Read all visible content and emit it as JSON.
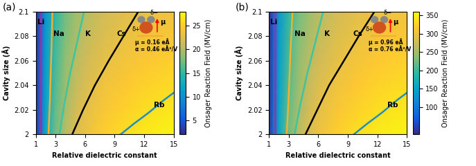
{
  "chart_data": [
    {
      "type": "heatmap",
      "panel_label": "(a)",
      "x_label": "Relative dielectric constant",
      "y_label": "Cavity size (Å)",
      "x": [
        1,
        1.5,
        2,
        3,
        4,
        5,
        6,
        8,
        10,
        12,
        15
      ],
      "y": [
        2.0,
        2.02,
        2.04,
        2.06,
        2.08,
        2.1
      ],
      "cells": [
        [
          2.5,
          7.6,
          12.2,
          17.4,
          20.3,
          22.1,
          23.4,
          25.1,
          26.1,
          26.8,
          27.5
        ],
        [
          2.4,
          7.4,
          11.8,
          16.9,
          19.7,
          21.5,
          22.7,
          24.4,
          25.3,
          26.0,
          26.7
        ],
        [
          2.4,
          7.2,
          11.5,
          16.4,
          19.1,
          20.8,
          22.0,
          23.7,
          24.6,
          25.3,
          25.9
        ],
        [
          2.3,
          7.0,
          11.2,
          15.9,
          18.6,
          20.2,
          21.4,
          23.0,
          23.9,
          24.5,
          25.2
        ],
        [
          2.2,
          6.8,
          10.8,
          15.5,
          18.0,
          19.6,
          20.8,
          22.3,
          23.2,
          23.8,
          24.4
        ],
        [
          2.2,
          6.6,
          10.5,
          15.0,
          17.5,
          19.1,
          20.2,
          21.7,
          22.5,
          23.1,
          23.8
        ]
      ],
      "xlim": [
        1,
        15
      ],
      "ylim": [
        2,
        2.1
      ],
      "xticks": [
        1,
        3,
        6,
        9,
        12,
        15
      ],
      "yticks": [
        2,
        2.02,
        2.04,
        2.06,
        2.08,
        2.1
      ],
      "colorbar_label": "Onsager Reaction Field (MV/cm)",
      "colorbar_range": [
        2,
        28
      ],
      "colorbar_ticks": [
        5,
        10,
        15,
        20,
        25
      ],
      "contours": [
        {
          "name": "Li",
          "color": "#b0279e",
          "x": [
            1.5,
            1.5
          ],
          "y": [
            2.0,
            2.1
          ],
          "label_at": [
            1.15,
            2.09
          ]
        },
        {
          "name": "Na",
          "color": "#f0b030",
          "x": [
            2.3,
            2.45,
            2.6,
            2.7
          ],
          "y": [
            2.0,
            2.03,
            2.07,
            2.1
          ],
          "label_at": [
            2.8,
            2.08
          ]
        },
        {
          "name": "K",
          "color": "#3fc4a0",
          "x": [
            3.4,
            3.9,
            4.5,
            5.2,
            5.9
          ],
          "y": [
            2.0,
            2.025,
            2.05,
            2.075,
            2.1
          ],
          "label_at": [
            6.0,
            2.08
          ]
        },
        {
          "name": "Cs",
          "color": "#000000",
          "x": [
            4.7,
            5.8,
            7.0,
            8.4,
            9.9,
            11.4
          ],
          "y": [
            2.0,
            2.02,
            2.04,
            2.06,
            2.08,
            2.1
          ],
          "label_at": [
            9.2,
            2.08
          ]
        },
        {
          "name": "Rb",
          "color": "#1f8fbf",
          "x": [
            9.6,
            11,
            12.5,
            14,
            15
          ],
          "y": [
            2.0,
            2.009,
            2.018,
            2.028,
            2.034
          ],
          "label_at": [
            13.0,
            2.022
          ]
        }
      ],
      "annotations": {
        "dipole_symbol": "μ",
        "charge_negative": "δ−",
        "charge_positive": "δ+",
        "dipole_moment": "μ = 0.16 eÅ",
        "polarizability": "α = 0.46 eÅ²/V"
      }
    },
    {
      "type": "heatmap",
      "panel_label": "(b)",
      "x_label": "Relative dielectric constant",
      "y_label": "Cavity size (Å)",
      "x": [
        1,
        1.5,
        2,
        3,
        4,
        5,
        6,
        8,
        10,
        12,
        15
      ],
      "y": [
        2.0,
        2.02,
        2.04,
        2.06,
        2.08,
        2.1
      ],
      "cells": [
        [
          32,
          98,
          157,
          225,
          262,
          285,
          302,
          324,
          337,
          346,
          355
        ],
        [
          31,
          95,
          152,
          218,
          254,
          277,
          293,
          314,
          327,
          336,
          345
        ],
        [
          30,
          92,
          148,
          212,
          247,
          269,
          285,
          305,
          318,
          326,
          335
        ],
        [
          29,
          90,
          144,
          206,
          240,
          261,
          276,
          296,
          308,
          317,
          325
        ],
        [
          28,
          87,
          140,
          200,
          233,
          253,
          268,
          288,
          300,
          308,
          316
        ],
        [
          28,
          85,
          136,
          194,
          226,
          246,
          261,
          280,
          291,
          299,
          307
        ]
      ],
      "xlim": [
        1,
        15
      ],
      "ylim": [
        2,
        2.1
      ],
      "xticks": [
        1,
        3,
        6,
        9,
        12,
        15
      ],
      "yticks": [
        2,
        2.02,
        2.04,
        2.06,
        2.08,
        2.1
      ],
      "colorbar_label": "Onsager Reaction Field (MV/cm)",
      "colorbar_range": [
        25,
        360
      ],
      "colorbar_ticks": [
        100,
        150,
        200,
        250,
        300,
        350
      ],
      "contours": [
        {
          "name": "Li",
          "color": "#b0279e",
          "x": [
            1.6,
            1.6
          ],
          "y": [
            2.0,
            2.1
          ],
          "label_at": [
            1.15,
            2.09
          ]
        },
        {
          "name": "Na",
          "color": "#f0b030",
          "x": [
            2.8,
            3.0,
            3.2,
            3.4
          ],
          "y": [
            2.0,
            2.03,
            2.07,
            2.1
          ],
          "label_at": [
            3.6,
            2.08
          ]
        },
        {
          "name": "K",
          "color": "#3fc4a0",
          "x": [
            3.6,
            4.2,
            4.9,
            5.7,
            6.5
          ],
          "y": [
            2.0,
            2.025,
            2.05,
            2.075,
            2.1
          ],
          "label_at": [
            6.6,
            2.08
          ]
        },
        {
          "name": "Cs",
          "color": "#000000",
          "x": [
            4.7,
            5.9,
            7.1,
            8.6,
            10.1,
            11.7
          ],
          "y": [
            2.0,
            2.02,
            2.04,
            2.06,
            2.08,
            2.1
          ],
          "label_at": [
            9.5,
            2.08
          ]
        },
        {
          "name": "Rb",
          "color": "#1f8fbf",
          "x": [
            9.6,
            11,
            12.5,
            14,
            15
          ],
          "y": [
            2.0,
            2.009,
            2.018,
            2.028,
            2.034
          ],
          "label_at": [
            13.0,
            2.022
          ]
        }
      ],
      "annotations": {
        "dipole_symbol": "μ",
        "charge_negative": "δ−",
        "charge_positive": "δ+",
        "dipole_moment": "μ = 0.96 eÅ",
        "polarizability": "α = 0.76 eÅ²/V"
      }
    }
  ]
}
